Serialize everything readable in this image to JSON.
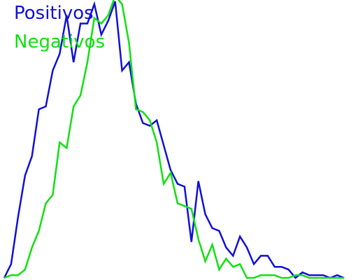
{
  "chart_data": {
    "type": "line",
    "title": "",
    "xlabel": "",
    "ylabel": "",
    "grid": false,
    "legend_placement": "top-left",
    "xlim": [
      0,
      49
    ],
    "ylim": [
      0,
      1
    ],
    "x": [
      0,
      1,
      2,
      3,
      4,
      5,
      6,
      7,
      8,
      9,
      10,
      11,
      12,
      13,
      14,
      15,
      16,
      17,
      18,
      19,
      20,
      21,
      22,
      23,
      24,
      25,
      26,
      27,
      28,
      29,
      30,
      31,
      32,
      33,
      34,
      35,
      36,
      37,
      38,
      39,
      40,
      41,
      42,
      43,
      44,
      45,
      46,
      47,
      48,
      49
    ],
    "series": [
      {
        "name": "Positivos",
        "color": "#1010d8",
        "values": [
          0.0,
          0.05,
          0.22,
          0.37,
          0.44,
          0.61,
          0.62,
          0.75,
          0.81,
          0.95,
          0.78,
          0.92,
          0.92,
          0.99,
          0.88,
          0.93,
          1.0,
          0.75,
          0.78,
          0.63,
          0.56,
          0.55,
          0.57,
          0.48,
          0.39,
          0.34,
          0.33,
          0.13,
          0.35,
          0.23,
          0.18,
          0.17,
          0.11,
          0.08,
          0.15,
          0.11,
          0.05,
          0.08,
          0.08,
          0.04,
          0.04,
          0.03,
          0.0,
          0.02,
          0.01,
          0.01,
          0.01,
          0.0,
          0.01,
          0.0
        ]
      },
      {
        "name": "Negativos",
        "color": "#10e010",
        "values": [
          0.0,
          0.01,
          0.01,
          0.03,
          0.11,
          0.17,
          0.27,
          0.3,
          0.49,
          0.47,
          0.62,
          0.66,
          0.78,
          0.94,
          0.92,
          0.95,
          1.02,
          0.99,
          0.85,
          0.61,
          0.6,
          0.57,
          0.49,
          0.34,
          0.38,
          0.27,
          0.26,
          0.25,
          0.14,
          0.06,
          0.12,
          0.03,
          0.07,
          0.04,
          0.05,
          0.0,
          0.0,
          0.01,
          0.01,
          0.01,
          0.0,
          0.0,
          0.01,
          0.01,
          0.0,
          0.0,
          0.0,
          0.0,
          0.0,
          0.0
        ]
      }
    ]
  }
}
